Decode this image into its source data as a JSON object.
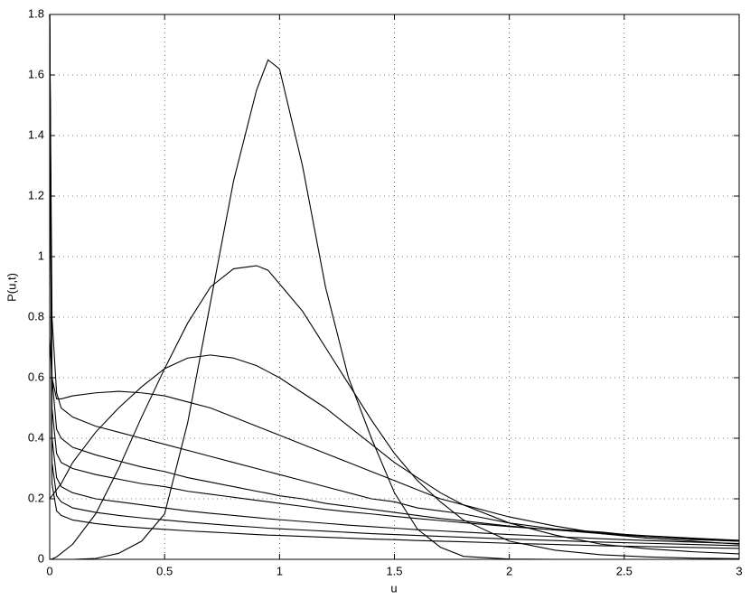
{
  "chart_data": {
    "type": "line",
    "xlabel": "u",
    "ylabel": "P(u,t)",
    "x": [
      0,
      0.01,
      0.03,
      0.05,
      0.1,
      0.2,
      0.3,
      0.4,
      0.5,
      0.6,
      0.7,
      0.8,
      0.9,
      0.95,
      1.0,
      1.1,
      1.2,
      1.3,
      1.4,
      1.5,
      1.6,
      1.7,
      1.8,
      2.0,
      2.2,
      2.4,
      2.6,
      2.8,
      3.0
    ],
    "series": [
      {
        "color": "#000000",
        "values": [
          0,
          0,
          0,
          0,
          0,
          0.003,
          0.02,
          0.06,
          0.15,
          0.45,
          0.85,
          1.25,
          1.55,
          1.65,
          1.62,
          1.3,
          0.9,
          0.6,
          0.4,
          0.22,
          0.1,
          0.04,
          0.01,
          0.001,
          0,
          0,
          0,
          0,
          0
        ]
      },
      {
        "color": "#000000",
        "values": [
          0,
          0.001,
          0.008,
          0.02,
          0.05,
          0.15,
          0.3,
          0.47,
          0.63,
          0.78,
          0.9,
          0.96,
          0.97,
          0.955,
          0.91,
          0.82,
          0.7,
          0.58,
          0.46,
          0.35,
          0.26,
          0.19,
          0.13,
          0.06,
          0.03,
          0.015,
          0.008,
          0.004,
          0.002
        ]
      },
      {
        "color": "#000000",
        "values": [
          0.2,
          0.21,
          0.23,
          0.25,
          0.32,
          0.42,
          0.5,
          0.57,
          0.63,
          0.665,
          0.675,
          0.665,
          0.64,
          0.62,
          0.6,
          0.55,
          0.5,
          0.44,
          0.38,
          0.32,
          0.27,
          0.22,
          0.18,
          0.12,
          0.08,
          0.05,
          0.035,
          0.025,
          0.018
        ]
      },
      {
        "color": "#000000",
        "values": [
          0.73,
          0.6,
          0.53,
          0.53,
          0.54,
          0.55,
          0.555,
          0.55,
          0.54,
          0.52,
          0.5,
          0.47,
          0.44,
          0.425,
          0.41,
          0.38,
          0.35,
          0.32,
          0.29,
          0.26,
          0.23,
          0.2,
          0.18,
          0.14,
          0.11,
          0.085,
          0.07,
          0.06,
          0.05
        ]
      },
      {
        "color": "#000000",
        "values": [
          1.8,
          0.8,
          0.55,
          0.5,
          0.47,
          0.44,
          0.42,
          0.4,
          0.38,
          0.36,
          0.34,
          0.32,
          0.3,
          0.29,
          0.28,
          0.26,
          0.24,
          0.22,
          0.2,
          0.19,
          0.17,
          0.16,
          0.15,
          0.12,
          0.1,
          0.09,
          0.075,
          0.065,
          0.06
        ]
      },
      {
        "color": "#000000",
        "values": [
          1.8,
          0.6,
          0.43,
          0.4,
          0.37,
          0.345,
          0.325,
          0.305,
          0.29,
          0.27,
          0.255,
          0.24,
          0.225,
          0.218,
          0.21,
          0.2,
          0.185,
          0.175,
          0.165,
          0.155,
          0.145,
          0.135,
          0.127,
          0.11,
          0.097,
          0.085,
          0.075,
          0.067,
          0.06
        ]
      },
      {
        "color": "#000000",
        "values": [
          1.8,
          0.5,
          0.35,
          0.32,
          0.3,
          0.28,
          0.265,
          0.25,
          0.24,
          0.225,
          0.215,
          0.205,
          0.195,
          0.19,
          0.185,
          0.175,
          0.165,
          0.157,
          0.15,
          0.142,
          0.135,
          0.128,
          0.121,
          0.108,
          0.097,
          0.087,
          0.078,
          0.07,
          0.063
        ]
      },
      {
        "color": "#000000",
        "values": [
          1.8,
          0.4,
          0.27,
          0.24,
          0.22,
          0.2,
          0.19,
          0.18,
          0.17,
          0.16,
          0.152,
          0.145,
          0.138,
          0.134,
          0.131,
          0.125,
          0.119,
          0.113,
          0.108,
          0.103,
          0.098,
          0.094,
          0.09,
          0.082,
          0.075,
          0.068,
          0.062,
          0.057,
          0.052
        ]
      },
      {
        "color": "#000000",
        "values": [
          1.8,
          0.32,
          0.21,
          0.19,
          0.17,
          0.155,
          0.145,
          0.137,
          0.13,
          0.123,
          0.117,
          0.111,
          0.106,
          0.103,
          0.101,
          0.097,
          0.093,
          0.089,
          0.085,
          0.082,
          0.079,
          0.076,
          0.073,
          0.067,
          0.062,
          0.057,
          0.053,
          0.049,
          0.045
        ]
      },
      {
        "color": "#000000",
        "values": [
          1.8,
          0.25,
          0.16,
          0.145,
          0.13,
          0.118,
          0.11,
          0.104,
          0.099,
          0.094,
          0.09,
          0.086,
          0.082,
          0.08,
          0.079,
          0.076,
          0.073,
          0.07,
          0.067,
          0.065,
          0.062,
          0.06,
          0.058,
          0.053,
          0.049,
          0.045,
          0.042,
          0.039,
          0.036
        ]
      }
    ],
    "xlim": [
      0,
      3
    ],
    "xticks": [
      0,
      0.5,
      1,
      1.5,
      2,
      2.5,
      3
    ],
    "ylim": [
      0,
      1.8
    ],
    "yticks": [
      0,
      0.2,
      0.4,
      0.6,
      0.8,
      1,
      1.2,
      1.4,
      1.6,
      1.8
    ],
    "grid": true
  }
}
